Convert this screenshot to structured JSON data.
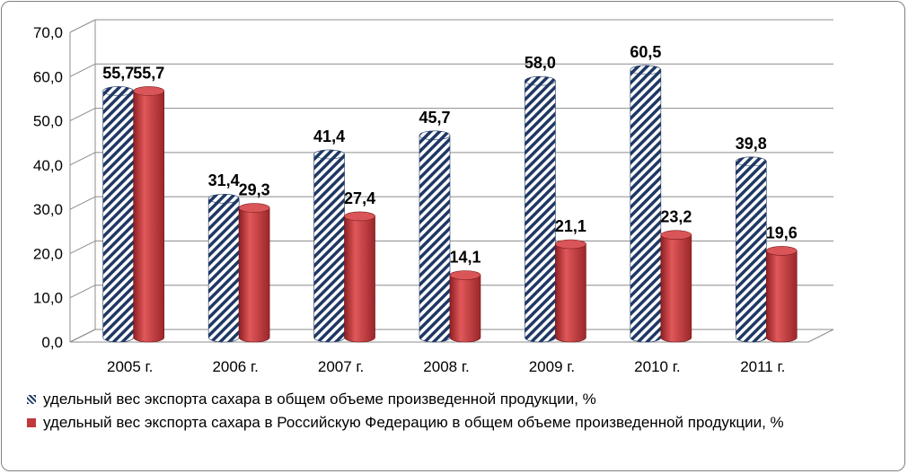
{
  "chart_data": {
    "type": "bar",
    "categories": [
      "2005 г.",
      "2006 г.",
      "2007 г.",
      "2008 г.",
      "2009 г.",
      "2010 г.",
      "2011 г."
    ],
    "series": [
      {
        "name": "удельный вес экспорта сахара в общем объеме произведенной продукции, %",
        "values": [
          55.7,
          31.4,
          41.4,
          45.7,
          58.0,
          60.5,
          39.8
        ],
        "labels": [
          "55,7",
          "31,4",
          "41,4",
          "45,7",
          "58,0",
          "60,5",
          "39,8"
        ],
        "style": "hatched",
        "color": "#1f3864"
      },
      {
        "name": "удельный вес экспорта сахара  в Российскую Федерацию в общем объеме произведенной продукции, %",
        "values": [
          55.7,
          29.3,
          27.4,
          14.1,
          21.1,
          23.2,
          19.6
        ],
        "labels": [
          "55,7",
          "29,3",
          "27,4",
          "14,1",
          "21,1",
          "23,2",
          "19,6"
        ],
        "style": "solid",
        "color": "#c0393b"
      }
    ],
    "ylim": [
      0,
      70
    ],
    "yticks": [
      "0,0",
      "10,0",
      "20,0",
      "30,0",
      "40,0",
      "50,0",
      "60,0",
      "70,0"
    ],
    "grid": true,
    "legend_position": "bottom",
    "title": "",
    "xlabel": "",
    "ylabel": ""
  }
}
